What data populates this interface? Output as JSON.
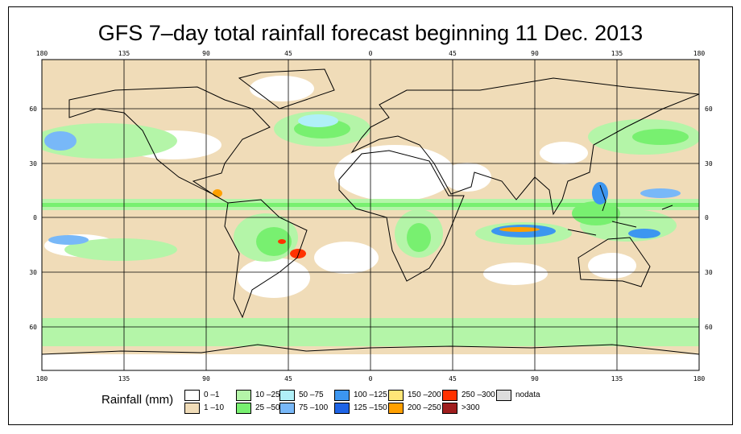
{
  "title": "GFS 7–day total rainfall forecast beginning 11 Dec. 2013",
  "axes": {
    "lon_labels": [
      "180",
      "135",
      "90",
      "45",
      "0",
      "45",
      "90",
      "135",
      "180"
    ],
    "lat_labels": [
      "60",
      "30",
      "0",
      "30",
      "60"
    ]
  },
  "legend": {
    "label": "Rainfall (mm)",
    "items": [
      {
        "label": "0 –1",
        "color": "#ffffff"
      },
      {
        "label": "1 –10",
        "color": "#f0dcb8"
      },
      {
        "label": "10 –25",
        "color": "#b4f5a8"
      },
      {
        "label": "25 –50",
        "color": "#78f070"
      },
      {
        "label": "50 –75",
        "color": "#b0f0f8"
      },
      {
        "label": "75 –100",
        "color": "#78b8f8"
      },
      {
        "label": "100 –125",
        "color": "#3c96f0"
      },
      {
        "label": "125 –150",
        "color": "#1e64e6"
      },
      {
        "label": "150 –200",
        "color": "#ffe678"
      },
      {
        "label": "200 –250",
        "color": "#ffa000"
      },
      {
        "label": "250 –300",
        "color": "#ff3200"
      },
      {
        "label": ">300",
        "color": "#a01e1e"
      },
      {
        "label": "nodata",
        "color": "#dcdcdc"
      }
    ]
  }
}
